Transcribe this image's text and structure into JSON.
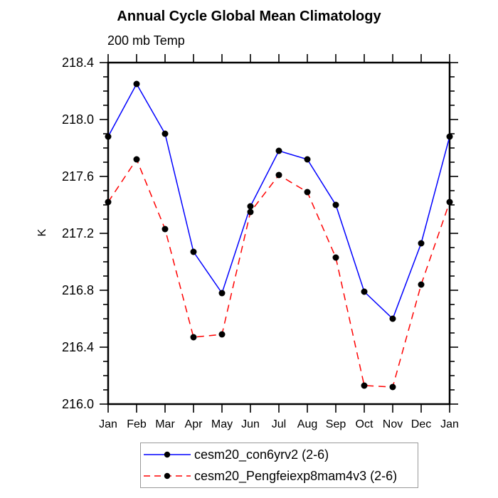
{
  "title": "Annual Cycle Global Mean Climatology",
  "subtitle": "200 mb Temp",
  "ylabel": "K",
  "chart_data": {
    "type": "line",
    "categories": [
      "Jan",
      "Feb",
      "Mar",
      "Apr",
      "May",
      "Jun",
      "Jul",
      "Aug",
      "Sep",
      "Oct",
      "Nov",
      "Dec",
      "Jan"
    ],
    "series": [
      {
        "name": "cesm20_con6yrv2 (2-6)",
        "color": "#0000ff",
        "line_style": "solid",
        "marker": "filled-black-circle",
        "values": [
          217.88,
          218.25,
          217.9,
          217.07,
          216.78,
          217.39,
          217.78,
          217.72,
          217.4,
          216.79,
          216.6,
          217.13,
          217.88
        ]
      },
      {
        "name": "cesm20_Pengfeiexp8mam4v3 (2-6)",
        "color": "#ff0000",
        "line_style": "dashed",
        "marker": "filled-black-circle",
        "values": [
          217.42,
          217.72,
          217.23,
          216.47,
          216.49,
          217.35,
          217.61,
          217.49,
          217.03,
          216.13,
          216.12,
          216.84,
          217.42
        ]
      }
    ],
    "ylim": [
      216.0,
      218.4
    ],
    "y_major_step": 0.4,
    "y_minor_step": 0.1,
    "y_tick_labels": [
      "216.0",
      "216.4",
      "216.8",
      "217.2",
      "217.6",
      "218.0",
      "218.4"
    ],
    "grid": false,
    "legend_position": "bottom",
    "axis_color": "#000000",
    "marker_color": "#000000"
  }
}
